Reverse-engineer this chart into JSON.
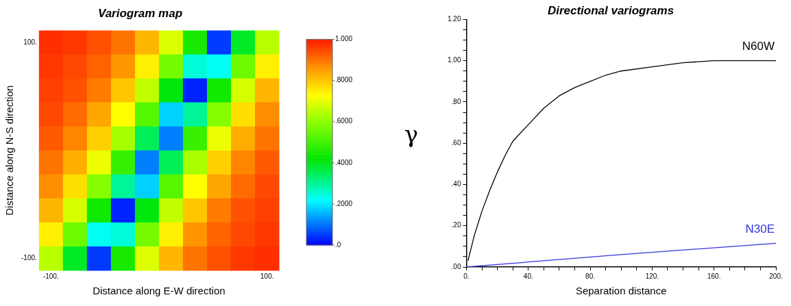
{
  "chart_data": [
    {
      "type": "heatmap",
      "title": "Variogram map",
      "xlabel": "Distance along E-W direction",
      "ylabel": "Distance along N-S direction",
      "categories": [
        "-100.",
        null,
        null,
        null,
        null,
        null,
        null,
        null,
        null,
        "100."
      ],
      "y_categories": [
        "100.",
        null,
        null,
        null,
        null,
        null,
        null,
        null,
        null,
        "-100."
      ],
      "cells": [
        [
          0.98,
          0.97,
          0.94,
          0.9,
          0.82,
          0.69,
          0.45,
          0.05,
          0.39,
          0.65
        ],
        [
          0.97,
          0.95,
          0.92,
          0.86,
          0.75,
          0.57,
          0.25,
          0.23,
          0.56,
          0.75
        ],
        [
          0.96,
          0.94,
          0.89,
          0.8,
          0.66,
          0.41,
          0.03,
          0.44,
          0.68,
          0.82
        ],
        [
          0.95,
          0.91,
          0.84,
          0.73,
          0.53,
          0.18,
          0.3,
          0.59,
          0.77,
          0.87
        ],
        [
          0.93,
          0.88,
          0.79,
          0.63,
          0.35,
          0.11,
          0.49,
          0.71,
          0.83,
          0.9
        ],
        [
          0.9,
          0.83,
          0.71,
          0.49,
          0.11,
          0.35,
          0.63,
          0.79,
          0.88,
          0.93
        ],
        [
          0.87,
          0.77,
          0.59,
          0.3,
          0.18,
          0.53,
          0.73,
          0.84,
          0.91,
          0.95
        ],
        [
          0.82,
          0.68,
          0.44,
          0.03,
          0.41,
          0.66,
          0.8,
          0.89,
          0.94,
          0.96
        ],
        [
          0.75,
          0.56,
          0.23,
          0.25,
          0.57,
          0.75,
          0.86,
          0.92,
          0.95,
          0.97
        ],
        [
          0.65,
          0.39,
          0.05,
          0.45,
          0.69,
          0.82,
          0.9,
          0.94,
          0.97,
          0.98
        ]
      ],
      "clim": [
        0,
        1
      ],
      "cticks": [
        {
          "value": 0,
          "label": ".0"
        },
        {
          "value": 0.2,
          "label": ".2000"
        },
        {
          "value": 0.4,
          "label": ".4000"
        },
        {
          "value": 0.6,
          "label": ".6000"
        },
        {
          "value": 0.8,
          "label": ".8000"
        },
        {
          "value": 1,
          "label": "1.000"
        }
      ]
    },
    {
      "type": "line",
      "title": "Directional variograms",
      "xlabel": "Separation distance",
      "ylabel": "γ",
      "legend": false,
      "xlim": [
        0,
        200
      ],
      "xticks": [
        {
          "value": 0,
          "label": "0."
        },
        {
          "value": 10,
          "label": null
        },
        {
          "value": 20,
          "label": null
        },
        {
          "value": 30,
          "label": null
        },
        {
          "value": 40,
          "label": "40."
        },
        {
          "value": 50,
          "label": null
        },
        {
          "value": 60,
          "label": null
        },
        {
          "value": 70,
          "label": null
        },
        {
          "value": 80,
          "label": "80."
        },
        {
          "value": 90,
          "label": null
        },
        {
          "value": 100,
          "label": null
        },
        {
          "value": 110,
          "label": null
        },
        {
          "value": 120,
          "label": "120."
        },
        {
          "value": 130,
          "label": null
        },
        {
          "value": 140,
          "label": null
        },
        {
          "value": 150,
          "label": null
        },
        {
          "value": 160,
          "label": "160."
        },
        {
          "value": 170,
          "label": null
        },
        {
          "value": 180,
          "label": null
        },
        {
          "value": 190,
          "label": null
        },
        {
          "value": 200,
          "label": "200."
        }
      ],
      "ylim": [
        0,
        1.2
      ],
      "yticks": [
        {
          "value": 0,
          "label": ".00"
        },
        {
          "value": 0.05,
          "label": null
        },
        {
          "value": 0.1,
          "label": null
        },
        {
          "value": 0.15,
          "label": null
        },
        {
          "value": 0.2,
          "label": ".20"
        },
        {
          "value": 0.25,
          "label": null
        },
        {
          "value": 0.3,
          "label": null
        },
        {
          "value": 0.35,
          "label": null
        },
        {
          "value": 0.4,
          "label": ".40"
        },
        {
          "value": 0.45,
          "label": null
        },
        {
          "value": 0.5,
          "label": null
        },
        {
          "value": 0.55,
          "label": null
        },
        {
          "value": 0.6,
          "label": ".60"
        },
        {
          "value": 0.65,
          "label": null
        },
        {
          "value": 0.7,
          "label": null
        },
        {
          "value": 0.75,
          "label": null
        },
        {
          "value": 0.8,
          "label": ".80"
        },
        {
          "value": 0.85,
          "label": null
        },
        {
          "value": 0.9,
          "label": null
        },
        {
          "value": 0.95,
          "label": null
        },
        {
          "value": 1,
          "label": "1.00"
        },
        {
          "value": 1.05,
          "label": null
        },
        {
          "value": 1.1,
          "label": null
        },
        {
          "value": 1.15,
          "label": null
        },
        {
          "value": 1.2,
          "label": "1.20"
        }
      ],
      "series": [
        {
          "name": "N60W",
          "color": "#000000",
          "x": [
            1,
            5,
            10,
            15,
            20,
            25,
            30,
            40,
            50,
            60,
            70,
            80,
            90,
            100,
            120,
            140,
            160,
            180,
            200
          ],
          "values": [
            0.03,
            0.15,
            0.27,
            0.37,
            0.46,
            0.54,
            0.61,
            0.69,
            0.77,
            0.83,
            0.87,
            0.9,
            0.93,
            0.95,
            0.97,
            0.99,
            1.0,
            1.0,
            1.0
          ]
        },
        {
          "name": "N30E",
          "color": "#3333dd",
          "x": [
            0,
            100,
            200
          ],
          "values": [
            0,
            0.06,
            0.115
          ]
        }
      ]
    }
  ]
}
